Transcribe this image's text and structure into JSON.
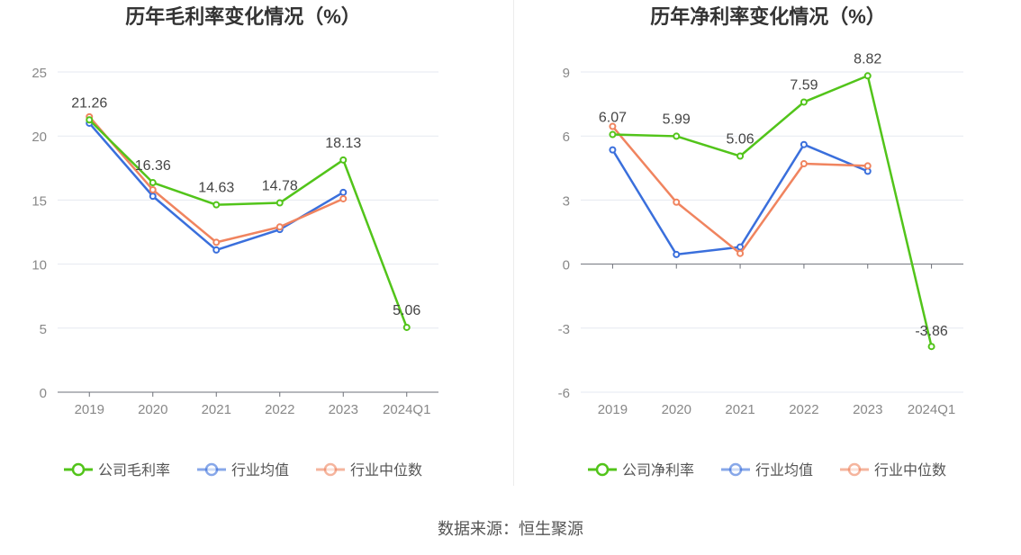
{
  "source_note": "数据来源：恒生聚源",
  "chart_data": [
    {
      "type": "line",
      "title": "历年毛利率变化情况（%）",
      "categories": [
        "2019",
        "2020",
        "2021",
        "2022",
        "2023",
        "2024Q1"
      ],
      "ylim": [
        0,
        25
      ],
      "yticks": [
        0,
        5,
        10,
        15,
        20,
        25
      ],
      "grid": true,
      "legend_position": "bottom",
      "series": [
        {
          "name": "公司毛利率",
          "color": "#52c41a",
          "values": [
            21.26,
            16.36,
            14.63,
            14.78,
            18.13,
            5.06
          ],
          "labels": [
            "21.26",
            "16.36",
            "14.63",
            "14.78",
            "18.13",
            "5.06"
          ]
        },
        {
          "name": "行业均值",
          "color": "#3a6fdc",
          "values": [
            21.0,
            15.3,
            11.1,
            12.7,
            15.6,
            null
          ]
        },
        {
          "name": "行业中位数",
          "color": "#f0845f",
          "values": [
            21.5,
            15.8,
            11.7,
            12.9,
            15.1,
            null
          ]
        }
      ]
    },
    {
      "type": "line",
      "title": "历年净利率变化情况（%）",
      "categories": [
        "2019",
        "2020",
        "2021",
        "2022",
        "2023",
        "2024Q1"
      ],
      "ylim": [
        -6,
        9
      ],
      "yticks": [
        -6,
        -3,
        0,
        3,
        6,
        9
      ],
      "grid": true,
      "legend_position": "bottom",
      "series": [
        {
          "name": "公司净利率",
          "color": "#52c41a",
          "values": [
            6.07,
            5.99,
            5.06,
            7.59,
            8.82,
            -3.86
          ],
          "labels": [
            "6.07",
            "5.99",
            "5.06",
            "7.59",
            "8.82",
            "-3.86"
          ]
        },
        {
          "name": "行业均值",
          "color": "#3a6fdc",
          "values": [
            5.35,
            0.45,
            0.8,
            5.6,
            4.35,
            null
          ]
        },
        {
          "name": "行业中位数",
          "color": "#f0845f",
          "values": [
            6.45,
            2.9,
            0.5,
            4.7,
            4.6,
            null
          ]
        }
      ]
    }
  ]
}
